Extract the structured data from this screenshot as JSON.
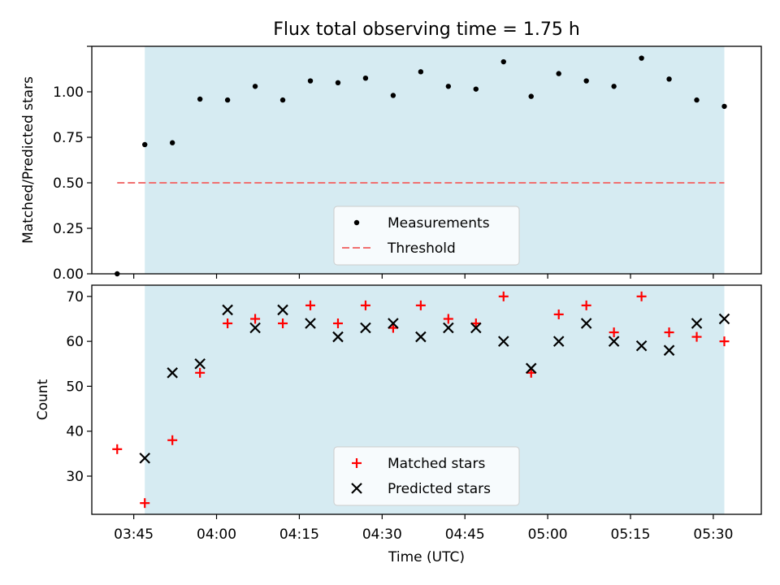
{
  "title": "Flux total observing time = 1.75 h",
  "chart_data": [
    {
      "type": "scatter",
      "ylabel": "Matched/Predicted stars",
      "ylim": [
        0,
        1.25
      ],
      "yticks": [
        0,
        0.25,
        0.5,
        0.75,
        1.0,
        1.25
      ],
      "ytick_labels": [
        "0.00",
        "0.25",
        "0.50",
        "0.75",
        "1.00",
        ""
      ],
      "grid": false,
      "legend_position": "lower center",
      "shaded_interval": [
        "03:47",
        "05:32"
      ],
      "shade_color": "#add8e6",
      "series": [
        {
          "name": "Measurements",
          "marker": "dot",
          "color": "#000000",
          "x": [
            "03:42",
            "03:47",
            "03:52",
            "03:57",
            "04:02",
            "04:07",
            "04:12",
            "04:17",
            "04:22",
            "04:27",
            "04:32",
            "04:37",
            "04:42",
            "04:47",
            "04:52",
            "04:57",
            "05:02",
            "05:07",
            "05:12",
            "05:17",
            "05:22",
            "05:27",
            "05:32"
          ],
          "y": [
            0.0,
            0.71,
            0.72,
            0.96,
            0.955,
            1.03,
            0.955,
            1.06,
            1.05,
            1.075,
            0.98,
            1.11,
            1.03,
            1.015,
            1.165,
            0.975,
            1.1,
            1.06,
            1.03,
            1.185,
            1.07,
            0.955,
            0.92
          ]
        },
        {
          "name": "Threshold",
          "style": "dashed",
          "color": "#f07070",
          "x": [
            "03:42",
            "05:32"
          ],
          "y": [
            0.5,
            0.5
          ]
        }
      ]
    },
    {
      "type": "scatter",
      "xlabel": "Time (UTC)",
      "ylabel": "Count",
      "ylim": [
        21.5,
        72.5
      ],
      "yticks": [
        30,
        40,
        50,
        60,
        70
      ],
      "ytick_labels": [
        "30",
        "40",
        "50",
        "60",
        "70"
      ],
      "xticks": [
        "03:45",
        "04:00",
        "04:15",
        "04:30",
        "04:45",
        "05:00",
        "05:15",
        "05:30"
      ],
      "grid": false,
      "legend_position": "lower center",
      "shaded_interval": [
        "03:47",
        "05:32"
      ],
      "shade_color": "#add8e6",
      "series": [
        {
          "name": "Matched stars",
          "marker": "plus",
          "color": "#ff0000",
          "x": [
            "03:42",
            "03:47",
            "03:52",
            "03:57",
            "04:02",
            "04:07",
            "04:12",
            "04:17",
            "04:22",
            "04:27",
            "04:32",
            "04:37",
            "04:42",
            "04:47",
            "04:52",
            "04:57",
            "05:02",
            "05:07",
            "05:12",
            "05:17",
            "05:22",
            "05:27",
            "05:32"
          ],
          "y": [
            36,
            24,
            38,
            53,
            64,
            65,
            64,
            68,
            64,
            68,
            63,
            68,
            65,
            64,
            70,
            53,
            66,
            68,
            62,
            70,
            62,
            61,
            60
          ]
        },
        {
          "name": "Predicted stars",
          "marker": "x",
          "color": "#000000",
          "x": [
            "03:47",
            "03:52",
            "03:57",
            "04:02",
            "04:07",
            "04:12",
            "04:17",
            "04:22",
            "04:27",
            "04:32",
            "04:37",
            "04:42",
            "04:47",
            "04:52",
            "04:57",
            "05:02",
            "05:07",
            "05:12",
            "05:17",
            "05:22",
            "05:27",
            "05:32"
          ],
          "y": [
            34,
            53,
            55,
            67,
            63,
            67,
            64,
            61,
            63,
            64,
            61,
            63,
            63,
            60,
            54,
            60,
            64,
            60,
            59,
            58,
            64,
            65
          ]
        }
      ]
    }
  ]
}
